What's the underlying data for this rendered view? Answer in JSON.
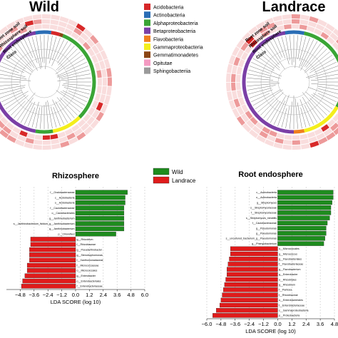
{
  "panels": {
    "wild_title": "Wild",
    "landrace_title": "Landrace",
    "ring_labels": [
      "Root zone soil",
      "Rhizosphere soil",
      "Root endosphere",
      "Class"
    ]
  },
  "class_legend": [
    {
      "name": "Acidobacteria",
      "color": "#d62728"
    },
    {
      "name": "Actinobacteria",
      "color": "#2a6db5"
    },
    {
      "name": "Alphaproteobacteria",
      "color": "#3aa535"
    },
    {
      "name": "Betaproteobacteria",
      "color": "#7b3fa6"
    },
    {
      "name": "Flavobacteria",
      "color": "#f07f1e"
    },
    {
      "name": "Gammaproteobacteria",
      "color": "#f4ee1c"
    },
    {
      "name": "Gemmatimonadetes",
      "color": "#8b4513"
    },
    {
      "name": "Opitutae",
      "color": "#f49ac2"
    },
    {
      "name": "Sphingobacteriia",
      "color": "#9a9a9a"
    }
  ],
  "group_legend": [
    {
      "name": "Wild",
      "color": "#1e8c1e"
    },
    {
      "name": "Landrace",
      "color": "#e01b1b"
    }
  ],
  "chart_data": [
    {
      "type": "bar",
      "orientation": "horizontal",
      "title": "Rhizosphere",
      "xlabel": "LDA SCORE (log 10)",
      "xlim": [
        -6.0,
        6.0
      ],
      "xticks": [
        "−4.8",
        "−3.6",
        "−2.4",
        "−1.2",
        "0.0",
        "1.2",
        "2.4",
        "3.6",
        "4.8",
        "6.0"
      ],
      "tick_values": [
        -4.8,
        -3.6,
        -2.4,
        -1.2,
        0.0,
        1.2,
        2.4,
        3.6,
        4.8,
        6.0
      ],
      "grid": true,
      "categories": [
        "f__Oxalobacteraceae",
        "c__Acidobacteria",
        "o__Acidobacteria",
        "f__Caulobacteraceae",
        "o__Caulobacterales",
        "g__Janthinobacterium",
        "s__Janthinobacterium_lividum_g__Janthinobacterium",
        "g__Janthinobacterium",
        "p__Chloroflexi",
        "g__Rhizobium",
        "f__Rhizobiaceae",
        "g__Pseudarthrobacter",
        "g__Stenotrophomonas",
        "f__Xanthomonadaceae",
        "f__Micrococcaceae",
        "o__Micrococcales",
        "g__Enterobacter",
        "o__Enterobacteriales",
        "f__Enterobacteriaceae"
      ],
      "series": [
        {
          "name": "Wild",
          "values": [
            4.5,
            4.3,
            4.3,
            4.2,
            4.2,
            4.2,
            4.2,
            4.2,
            3.5,
            null,
            null,
            null,
            null,
            null,
            null,
            null,
            null,
            null,
            null
          ]
        },
        {
          "name": "Landrace",
          "values": [
            null,
            null,
            null,
            null,
            null,
            null,
            null,
            null,
            null,
            -3.9,
            -3.9,
            -4.0,
            -4.0,
            -4.0,
            -4.2,
            -4.2,
            -4.4,
            -4.6,
            -4.7
          ]
        }
      ]
    },
    {
      "type": "bar",
      "orientation": "horizontal",
      "title": "Root endosphere",
      "xlabel": "LDA SCORE (log 10)",
      "xlim": [
        -6.0,
        4.8
      ],
      "xticks": [
        "−6.0",
        "−4.8",
        "−3.6",
        "−2.4",
        "−1.2",
        "0.0",
        "1.2",
        "2.4",
        "3.6",
        "4.8"
      ],
      "tick_values": [
        -6.0,
        -4.8,
        -3.6,
        -2.4,
        -1.2,
        0.0,
        1.2,
        2.4,
        3.6,
        4.8
      ],
      "grid": true,
      "categories": [
        "c__Actinobacteria",
        "o__Actinobacteria",
        "g__Streptomyces",
        "s__Streptomycetaceae",
        "f__Streptomycetaceae",
        "s__Streptomyces_mirabilis",
        "f__Caulobacteraceae",
        "g__Pseudomonas",
        "g__Pseudomonas",
        "s__uncultured_bacterium_g__Pseudomonas",
        "g__Phenylobacterium",
        "o__Micrococcales",
        "g__Micrococcus",
        "g__Flavobacteriales",
        "f__Flavobacteriaceae",
        "g__Flavobacterium",
        "g__Enterobacter",
        "o__Rhizobiales",
        "g__Rhizobium",
        "f__Pantoea",
        "f__Rhizobiaceae",
        "o__Enterobacteriales",
        "f__Enterobacteriaceae",
        "c__Gammaproteobacteria",
        "p__Proteobacteria"
      ],
      "series": [
        {
          "name": "Wild",
          "values": [
            4.7,
            4.7,
            4.6,
            4.5,
            4.5,
            4.4,
            4.2,
            4.1,
            4.1,
            4.0,
            3.9,
            null,
            null,
            null,
            null,
            null,
            null,
            null,
            null,
            null,
            null,
            null,
            null,
            null,
            null
          ]
        },
        {
          "name": "Landrace",
          "values": [
            null,
            null,
            null,
            null,
            null,
            null,
            null,
            null,
            null,
            null,
            null,
            -4.0,
            -4.0,
            -4.1,
            -4.2,
            -4.3,
            -4.3,
            -4.4,
            -4.5,
            -4.6,
            -4.7,
            -4.8,
            -4.9,
            -5.2,
            -5.5
          ]
        }
      ]
    }
  ]
}
